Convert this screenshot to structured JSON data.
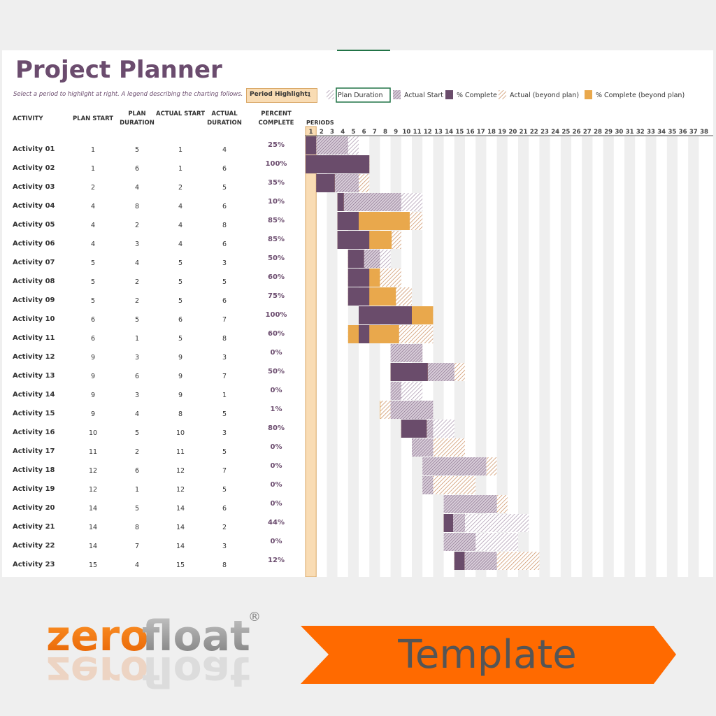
{
  "header": {
    "title": "Project Planner",
    "instructions": "Select a period to highlight at right.  A legend describing the charting follows.",
    "period_highlight": {
      "label": "Period Highlight:",
      "value": 1
    }
  },
  "legend": [
    "Plan Duration",
    "Actual Start",
    "% Complete",
    "Actual (beyond plan)",
    "% Complete (beyond plan)"
  ],
  "table": {
    "columns": [
      "ACTIVITY",
      "PLAN START",
      "PLAN DURATION",
      "ACTUAL START",
      "ACTUAL DURATION",
      "PERCENT COMPLETE"
    ],
    "rows": [
      [
        "Activity 01",
        1,
        5,
        1,
        4,
        "25%"
      ],
      [
        "Activity 02",
        1,
        6,
        1,
        6,
        "100%"
      ],
      [
        "Activity 03",
        2,
        4,
        2,
        5,
        "35%"
      ],
      [
        "Activity 04",
        4,
        8,
        4,
        6,
        "10%"
      ],
      [
        "Activity 05",
        4,
        2,
        4,
        8,
        "85%"
      ],
      [
        "Activity 06",
        4,
        3,
        4,
        6,
        "85%"
      ],
      [
        "Activity 07",
        5,
        4,
        5,
        3,
        "50%"
      ],
      [
        "Activity 08",
        5,
        2,
        5,
        5,
        "60%"
      ],
      [
        "Activity 09",
        5,
        2,
        5,
        6,
        "75%"
      ],
      [
        "Activity 10",
        6,
        5,
        6,
        7,
        "100%"
      ],
      [
        "Activity 11",
        6,
        1,
        5,
        8,
        "60%"
      ],
      [
        "Activity 12",
        9,
        3,
        9,
        3,
        "0%"
      ],
      [
        "Activity 13",
        9,
        6,
        9,
        7,
        "50%"
      ],
      [
        "Activity 14",
        9,
        3,
        9,
        1,
        "0%"
      ],
      [
        "Activity 15",
        9,
        4,
        8,
        5,
        "1%"
      ],
      [
        "Activity 16",
        10,
        5,
        10,
        3,
        "80%"
      ],
      [
        "Activity 17",
        11,
        2,
        11,
        5,
        "0%"
      ],
      [
        "Activity 18",
        12,
        6,
        12,
        7,
        "0%"
      ],
      [
        "Activity 19",
        12,
        1,
        12,
        5,
        "0%"
      ],
      [
        "Activity 20",
        14,
        5,
        14,
        6,
        "0%"
      ],
      [
        "Activity 21",
        14,
        8,
        14,
        2,
        "44%"
      ],
      [
        "Activity 22",
        14,
        7,
        14,
        3,
        "0%"
      ],
      [
        "Activity 23",
        15,
        4,
        15,
        8,
        "12%"
      ]
    ]
  },
  "periods": {
    "label": "PERIODS",
    "values": [
      1,
      2,
      3,
      4,
      5,
      6,
      7,
      8,
      9,
      10,
      11,
      12,
      13,
      14,
      15,
      16,
      17,
      18,
      19,
      20,
      21,
      22,
      23,
      24,
      25,
      26,
      27,
      28,
      29,
      30,
      31,
      32,
      33,
      34,
      35,
      36,
      37,
      38
    ]
  },
  "branding": {
    "logo_zero": "zero",
    "logo_float": "float",
    "registered": "®",
    "banner": "Template"
  }
}
